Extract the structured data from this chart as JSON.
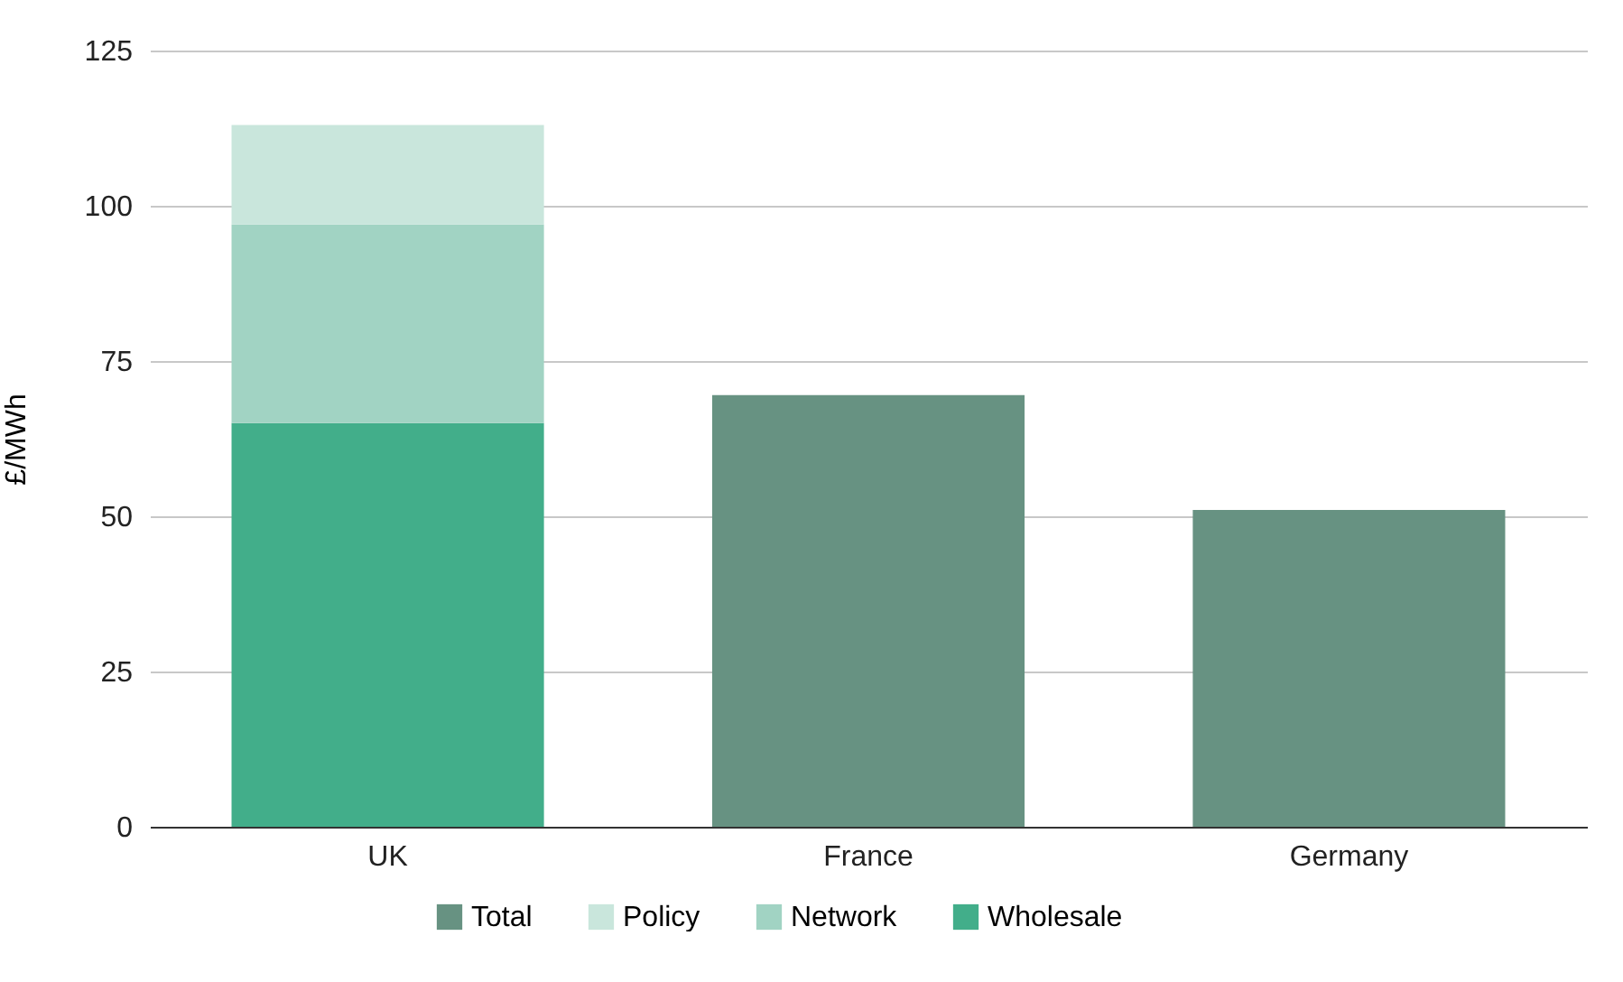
{
  "chart_data": {
    "type": "bar",
    "ylabel": "£/MWh",
    "categories": [
      "UK",
      "France",
      "Germany"
    ],
    "stacked": true,
    "series": [
      {
        "name": "Wholesale",
        "color": "#42ae8a",
        "values": [
          65,
          null,
          null
        ]
      },
      {
        "name": "Network",
        "color": "#a1d3c3",
        "values": [
          32,
          null,
          null
        ]
      },
      {
        "name": "Policy",
        "color": "#c9e6dc",
        "values": [
          16,
          null,
          null
        ]
      },
      {
        "name": "Total",
        "color": "#679282",
        "values": [
          null,
          69.5,
          51
        ]
      }
    ],
    "ylim": [
      0,
      125
    ],
    "yticks": [
      0,
      25,
      50,
      75,
      100,
      125
    ],
    "grid": "y",
    "legend": "bottom"
  }
}
